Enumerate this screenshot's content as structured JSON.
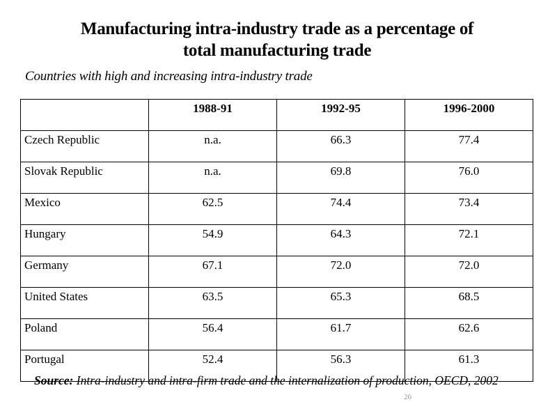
{
  "title": {
    "line1": "Manufacturing intra-industry trade as a percentage of",
    "line2": "total manufacturing trade"
  },
  "subtitle": "Countries with high and increasing intra-industry trade",
  "table": {
    "headers": [
      "",
      "1988-91",
      "1992-95",
      "1996-2000"
    ],
    "rows": [
      [
        "Czech Republic",
        "n.a.",
        "66.3",
        "77.4"
      ],
      [
        "Slovak Republic",
        "n.a.",
        "69.8",
        "76.0"
      ],
      [
        "Mexico",
        "62.5",
        "74.4",
        "73.4"
      ],
      [
        "Hungary",
        "54.9",
        "64.3",
        "72.1"
      ],
      [
        "Germany",
        "67.1",
        "72.0",
        "72.0"
      ],
      [
        "United States",
        "63.5",
        "65.3",
        "68.5"
      ],
      [
        "Poland",
        "56.4",
        "61.7",
        "62.6"
      ],
      [
        "Portugal",
        "52.4",
        "56.3",
        "61.3"
      ]
    ]
  },
  "source": {
    "label": "Source:",
    "text": " Intra-industry and intra-firm trade and the internalization of production, OECD, 2002"
  },
  "page_number": "26"
}
